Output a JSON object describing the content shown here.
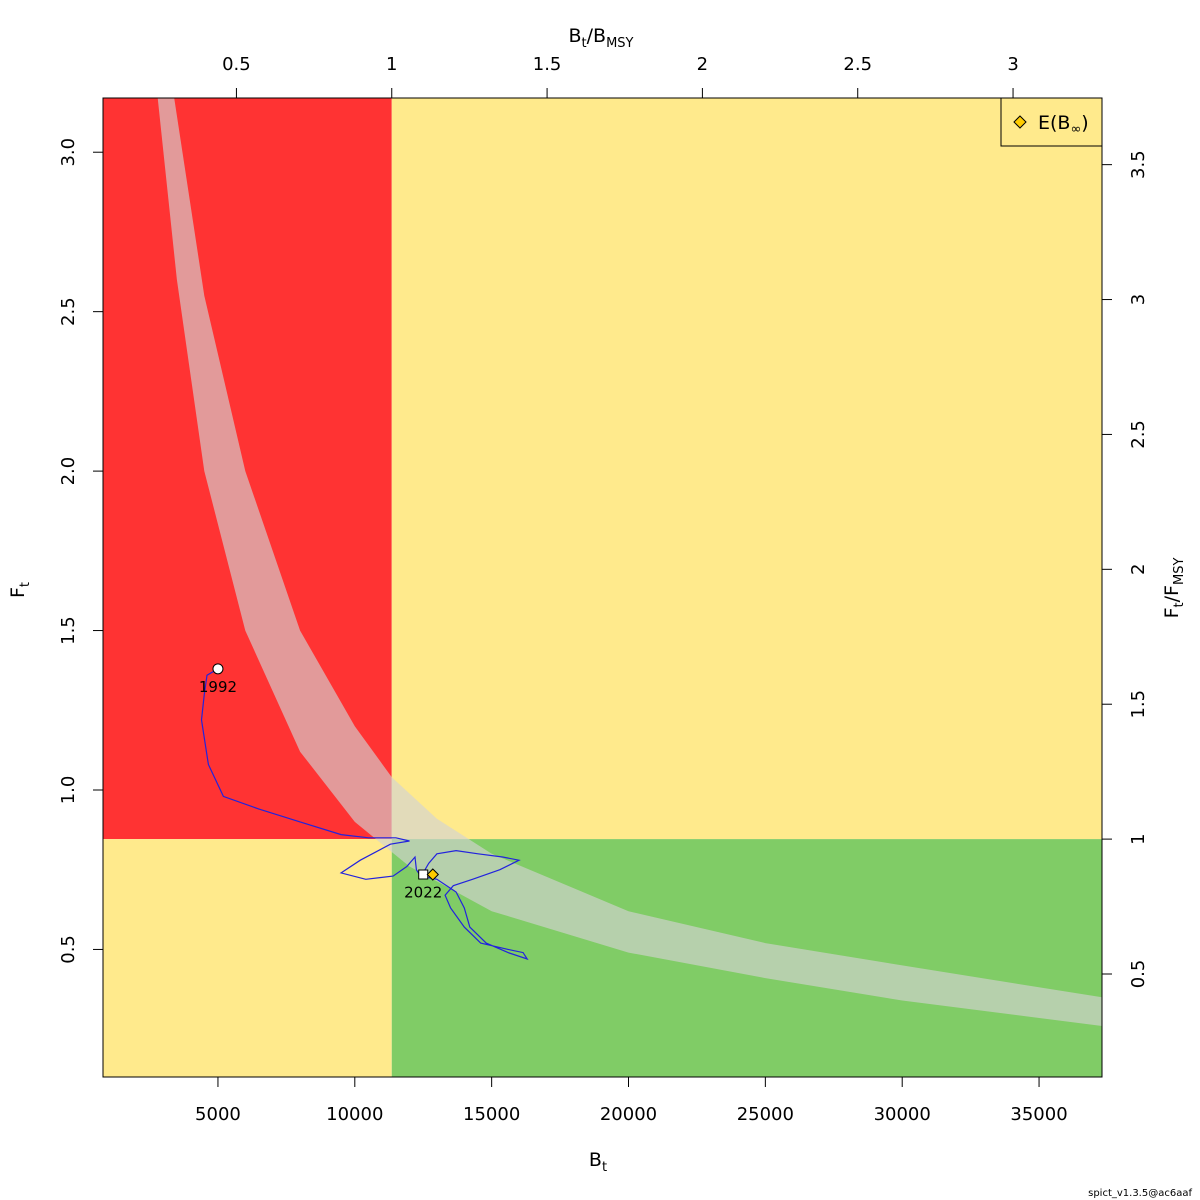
{
  "chart_data": {
    "type": "scatter",
    "xlabel": {
      "main": "B",
      "sub": "t"
    },
    "ylabel": {
      "main": "F",
      "sub": "t"
    },
    "x2label": {
      "num": "B",
      "num_sub": "t",
      "den": "B",
      "den_sub": "MSY"
    },
    "y2label": {
      "num": "F",
      "num_sub": "t",
      "den": "F",
      "den_sub": "MSY"
    },
    "xlim": [
      800,
      37300
    ],
    "ylim": [
      0.1,
      3.17
    ],
    "x_ticks": [
      5000,
      10000,
      15000,
      20000,
      25000,
      30000,
      35000
    ],
    "y_ticks": [
      0.5,
      1.0,
      1.5,
      2.0,
      2.5,
      3.0
    ],
    "x_tick_labels": [
      "5000",
      "10000",
      "15000",
      "20000",
      "25000",
      "30000",
      "35000"
    ],
    "y_tick_labels": [
      "0.5",
      "1.0",
      "1.5",
      "2.0",
      "2.5",
      "3.0"
    ],
    "bmsy": 11350,
    "fmsy": 0.846,
    "x2_ticks": [
      0.5,
      1,
      1.5,
      2,
      2.5,
      3
    ],
    "x2_tick_labels": [
      "0.5",
      "1",
      "1.5",
      "2",
      "2.5",
      "3"
    ],
    "y2_ticks": [
      0.5,
      1,
      1.5,
      2,
      2.5,
      3,
      3.5
    ],
    "y2_tick_labels": [
      "0.5",
      "1",
      "1.5",
      "2",
      "2.5",
      "3",
      "3.5"
    ],
    "zone_colors": {
      "overfished_overfishing": "#ff3333",
      "caution": "#ffea8c",
      "healthy": "#80cc66",
      "band": "#d3d3d3",
      "trajectory": "#2222dd"
    },
    "msy_band": {
      "lower": [
        [
          2800,
          3.17
        ],
        [
          3500,
          2.6
        ],
        [
          4500,
          2.0
        ],
        [
          6000,
          1.5
        ],
        [
          8000,
          1.12
        ],
        [
          10000,
          0.9
        ],
        [
          12000,
          0.76
        ],
        [
          15000,
          0.62
        ],
        [
          20000,
          0.49
        ],
        [
          25000,
          0.41
        ],
        [
          30000,
          0.34
        ],
        [
          37300,
          0.26
        ]
      ],
      "upper": [
        [
          3400,
          3.17
        ],
        [
          4500,
          2.55
        ],
        [
          6000,
          2.0
        ],
        [
          8000,
          1.5
        ],
        [
          10000,
          1.2
        ],
        [
          11350,
          1.04
        ],
        [
          13000,
          0.91
        ],
        [
          15000,
          0.8
        ],
        [
          20000,
          0.62
        ],
        [
          25000,
          0.52
        ],
        [
          30000,
          0.45
        ],
        [
          37300,
          0.35
        ]
      ]
    },
    "trajectory": [
      [
        5000,
        1.38
      ],
      [
        4600,
        1.36
      ],
      [
        4500,
        1.3
      ],
      [
        4400,
        1.22
      ],
      [
        4650,
        1.08
      ],
      [
        5200,
        0.98
      ],
      [
        6500,
        0.94
      ],
      [
        8000,
        0.9
      ],
      [
        9500,
        0.86
      ],
      [
        10500,
        0.85
      ],
      [
        11500,
        0.85
      ],
      [
        12000,
        0.84
      ],
      [
        11300,
        0.83
      ],
      [
        10200,
        0.78
      ],
      [
        9500,
        0.74
      ],
      [
        10400,
        0.72
      ],
      [
        11400,
        0.73
      ],
      [
        11900,
        0.76
      ],
      [
        12200,
        0.79
      ],
      [
        12250,
        0.75
      ],
      [
        12400,
        0.73
      ],
      [
        13000,
        0.72
      ],
      [
        13700,
        0.68
      ],
      [
        14000,
        0.63
      ],
      [
        14200,
        0.57
      ],
      [
        14800,
        0.52
      ],
      [
        15600,
        0.49
      ],
      [
        16300,
        0.47
      ],
      [
        16150,
        0.49
      ],
      [
        15600,
        0.5
      ],
      [
        14600,
        0.52
      ],
      [
        14000,
        0.57
      ],
      [
        13500,
        0.63
      ],
      [
        13300,
        0.67
      ],
      [
        13600,
        0.7
      ],
      [
        14300,
        0.72
      ],
      [
        15300,
        0.75
      ],
      [
        16000,
        0.78
      ],
      [
        15400,
        0.79
      ],
      [
        14500,
        0.8
      ],
      [
        13700,
        0.81
      ],
      [
        13000,
        0.8
      ],
      [
        12700,
        0.77
      ],
      [
        12500,
        0.74
      ]
    ],
    "points": {
      "start": {
        "label": "1992",
        "x": 5000,
        "y": 1.38
      },
      "end": {
        "label": "2022",
        "x": 12500,
        "y": 0.735
      },
      "expected": {
        "x": 12850,
        "y": 0.735
      }
    },
    "legend": {
      "position": "top-right",
      "entry": {
        "main": "E(B",
        "sub": "∞",
        "close": ")"
      }
    }
  },
  "footer": {
    "version": "spict_v1.3.5@ac6aaf"
  }
}
